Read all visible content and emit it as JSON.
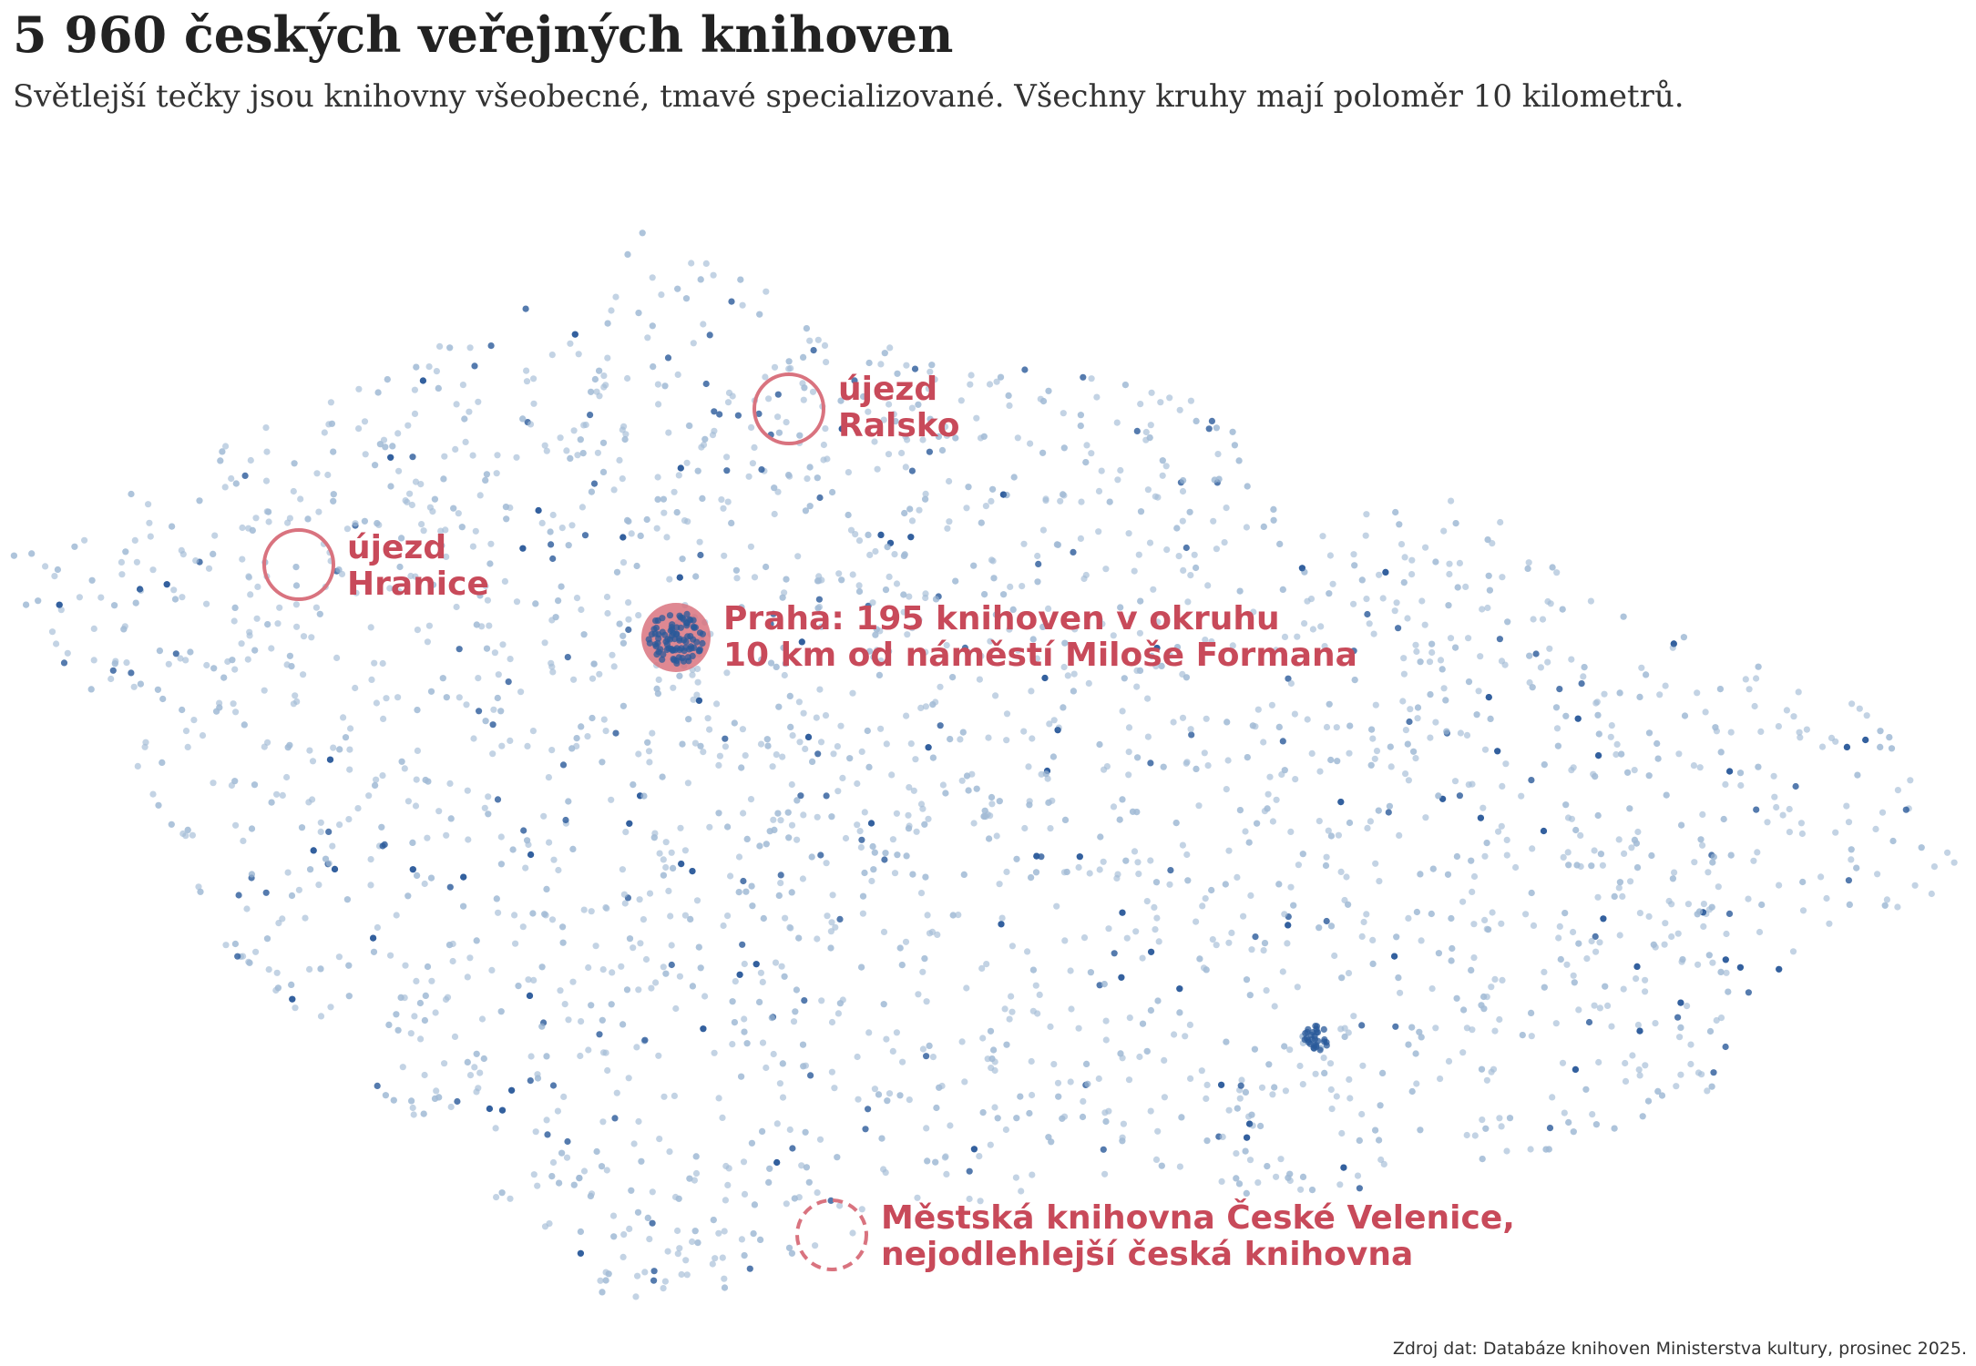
{
  "title": "5 960 českých veřejných knihoven",
  "subtitle": "Světlejší tečky jsou knihovny všeobecné, tmavé specializované. Všechny kruhy mají poloměr 10 kilometrů.",
  "source": "Zdroj dat: Databáze knihoven Ministerstva kultury, prosinec 2025.",
  "colors": {
    "general_dot": "#a3bcd6",
    "specialized_dot": "#2a5a9a",
    "highlight": "#c84a5a",
    "circle_outline": "#d9737f",
    "prague_fill": "#d9737f"
  },
  "annotations": {
    "ralsko": {
      "line1": "újezd",
      "line2": "Ralsko"
    },
    "hranice": {
      "line1": "újezd",
      "line2": "Hranice"
    },
    "praha": {
      "line1": "Praha: 195 knihoven v okruhu",
      "line2": "10 km od náměstí Miloše Formana"
    },
    "velenice": {
      "line1": "Městská knihovna České Velenice,",
      "line2": "nejodlehlejší česká knihovna"
    }
  }
}
